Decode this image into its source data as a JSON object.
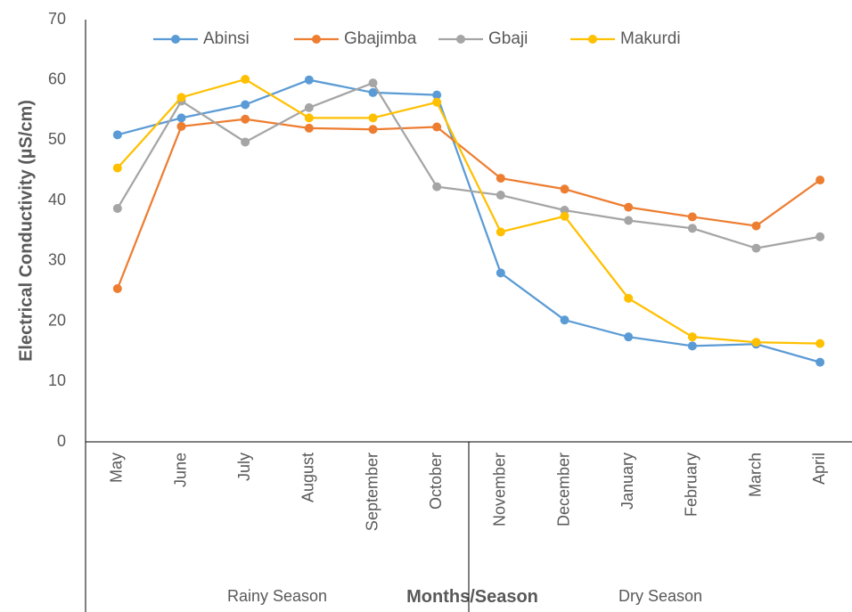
{
  "chart_data": {
    "type": "line",
    "xlabel": "Months/Season",
    "ylabel": "Electrical Conductivity (µS/cm)",
    "categories": [
      "May",
      "June",
      "July",
      "August",
      "September",
      "October",
      "November",
      "December",
      "January",
      "February",
      "March",
      "April"
    ],
    "groups": [
      {
        "name": "Rainy Season",
        "start": "May",
        "end": "October"
      },
      {
        "name": "Dry Season",
        "start": "November",
        "end": "April"
      }
    ],
    "series": [
      {
        "name": "Abinsi",
        "color": "#5b9bd5",
        "values": [
          50.9,
          53.7,
          55.9,
          60,
          57.9,
          57.5,
          28,
          20.2,
          17.4,
          15.9,
          16.2,
          13.2
        ]
      },
      {
        "name": "Gbajimba",
        "color": "#ed7d31",
        "values": [
          25.4,
          52.3,
          53.5,
          52,
          51.8,
          52.2,
          43.7,
          41.9,
          38.9,
          37.3,
          35.8,
          43.4
        ]
      },
      {
        "name": "Gbaji",
        "color": "#a5a5a5",
        "values": [
          38.7,
          56.5,
          49.7,
          55.4,
          59.5,
          42.3,
          40.9,
          38.4,
          36.7,
          35.4,
          32.1,
          34
        ]
      },
      {
        "name": "Makurdi",
        "color": "#ffc000",
        "values": [
          45.4,
          57.1,
          60.1,
          53.7,
          53.7,
          56.3,
          34.8,
          37.4,
          23.8,
          17.4,
          16.5,
          16.3
        ]
      }
    ],
    "ylim": [
      0,
      70
    ],
    "yticks": [
      0,
      10,
      20,
      30,
      40,
      50,
      60,
      70
    ],
    "legend": "top"
  }
}
